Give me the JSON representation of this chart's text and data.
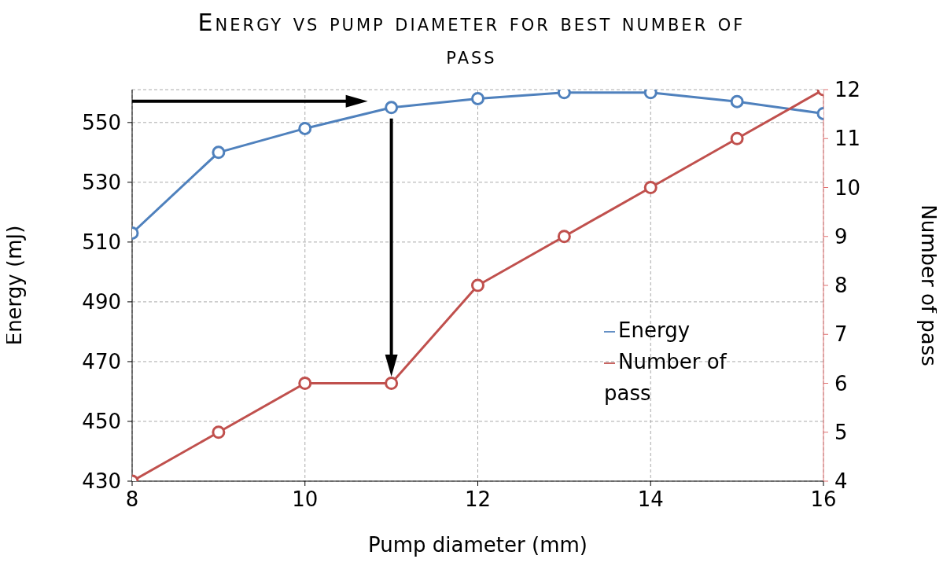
{
  "chart_data": {
    "type": "line",
    "title": "Energy vs pump diameter for best number of pass",
    "xlabel": "Pump diameter (mm)",
    "ylabel": "Energy (mJ)",
    "y2label": "Number of pass",
    "x": [
      8,
      9,
      10,
      11,
      12,
      13,
      14,
      15,
      16
    ],
    "series": [
      {
        "name": "Energy",
        "color": "#4f81bd",
        "values": [
          513,
          540,
          548,
          555,
          558,
          560,
          560,
          557,
          553
        ]
      },
      {
        "name": "Number of pass",
        "color": "#c0504d",
        "axis": "y2",
        "values": [
          4,
          5,
          6,
          6,
          8,
          9,
          10,
          11,
          12
        ]
      }
    ],
    "xlim": [
      8,
      16
    ],
    "xticks": [
      8,
      10,
      12,
      14,
      16
    ],
    "ylim": [
      430,
      561
    ],
    "yticks": [
      430,
      450,
      470,
      490,
      510,
      530,
      550
    ],
    "y2lim": [
      4,
      12
    ],
    "y2ticks": [
      4,
      5,
      6,
      7,
      8,
      9,
      10,
      11,
      12
    ],
    "grid": true,
    "legend": "right",
    "marker": "circle",
    "line_style": "solid"
  }
}
